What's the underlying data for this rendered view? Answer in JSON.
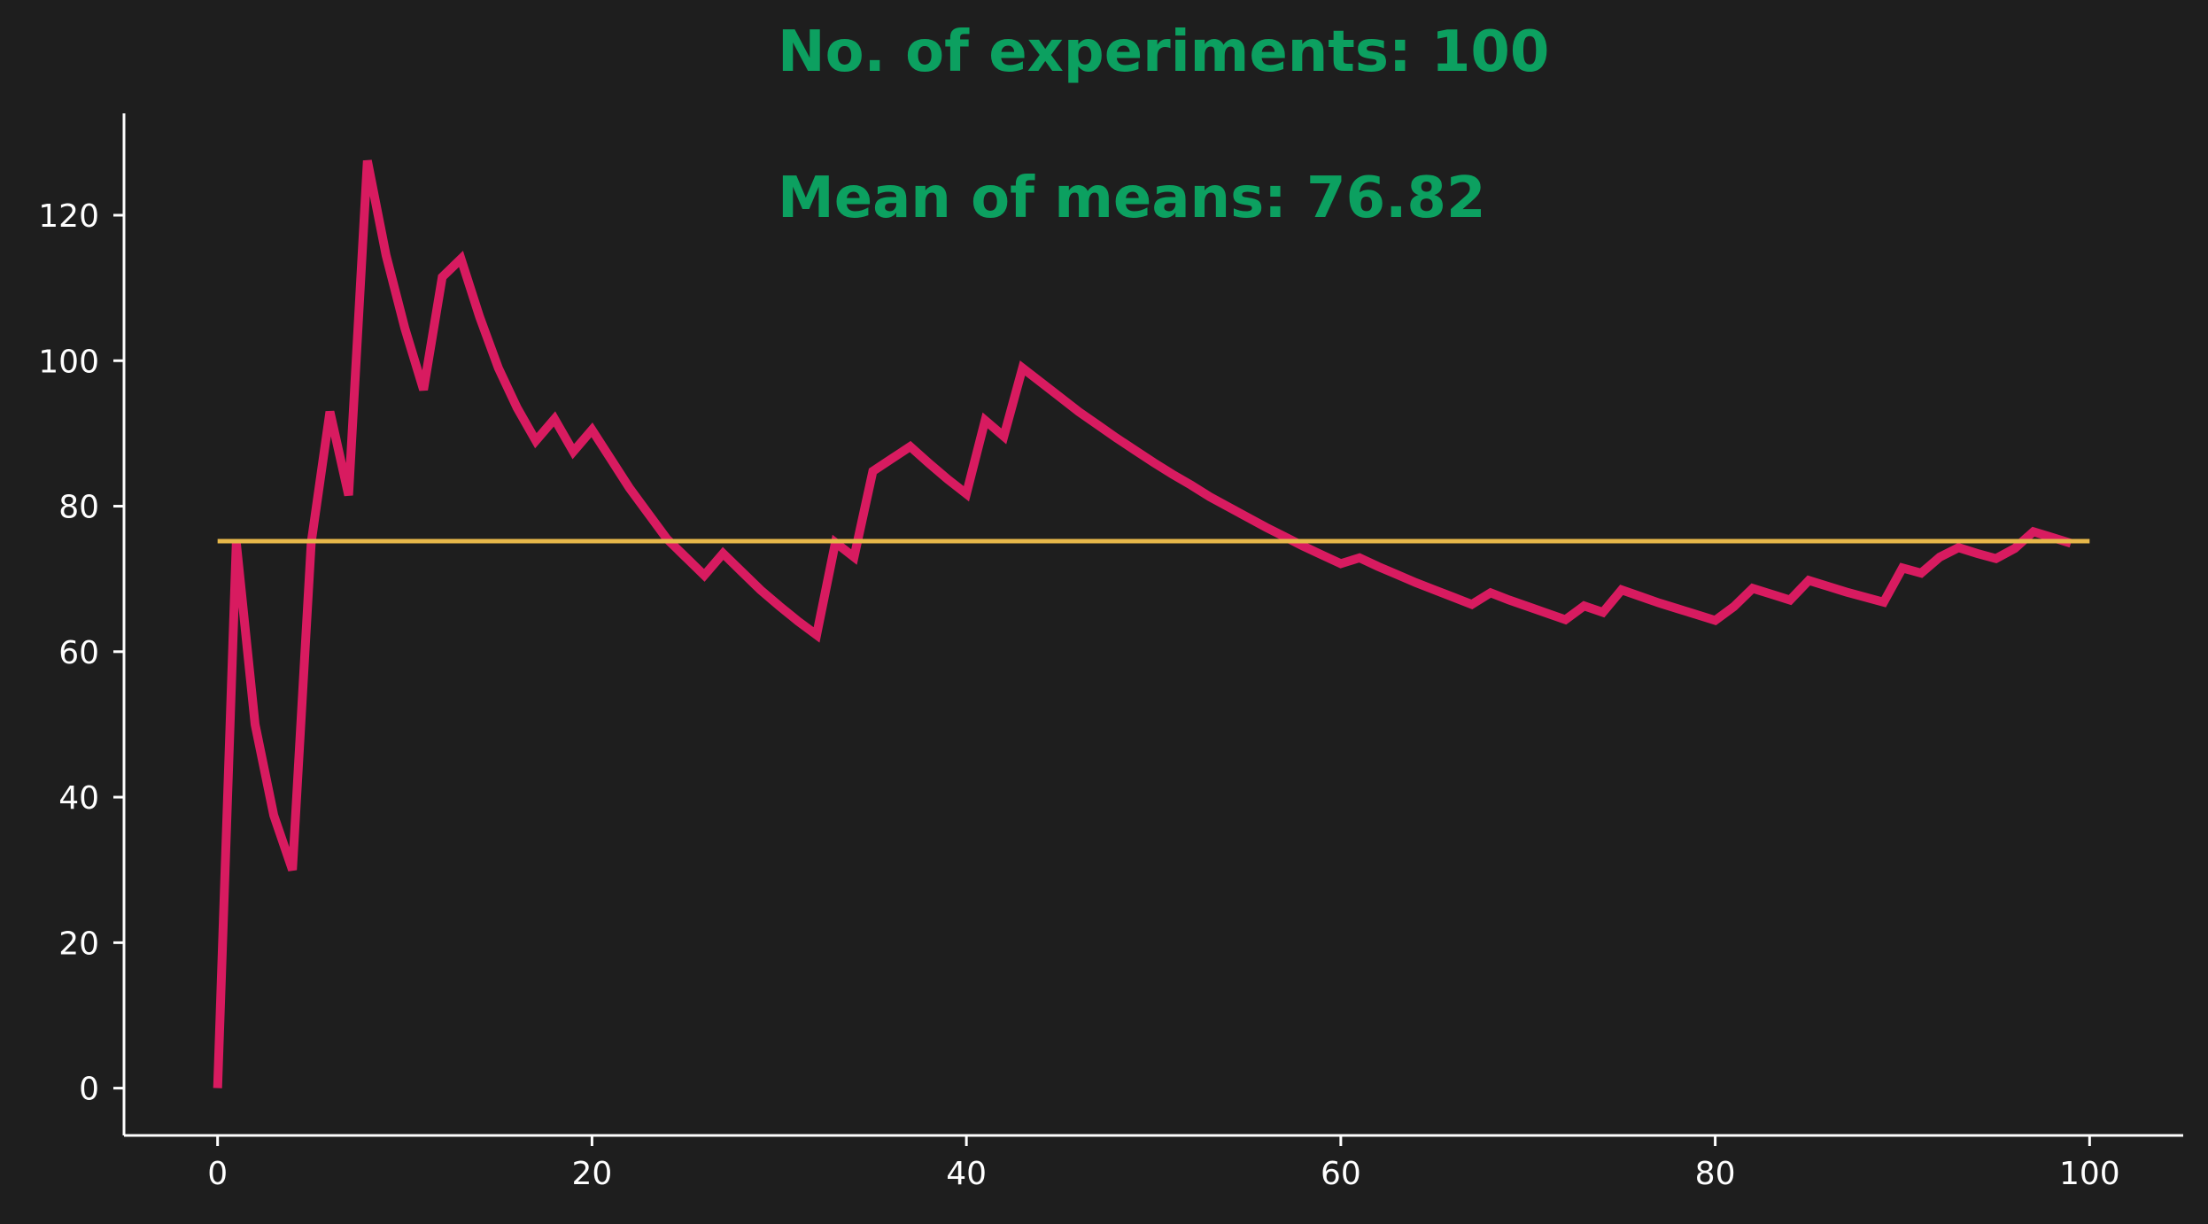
{
  "colors": {
    "background": "#1e1e1e",
    "axis": "#ffffff",
    "series_line": "#d81b60",
    "reference_line": "#e7b84a",
    "annotation": "#0ca060"
  },
  "chart_data": {
    "type": "line",
    "title": "",
    "xlabel": "",
    "ylabel": "",
    "xlim": [
      -5,
      105
    ],
    "ylim": [
      -6.5,
      134
    ],
    "grid": false,
    "x_ticks": [
      0,
      20,
      40,
      60,
      80,
      100
    ],
    "y_ticks": [
      0,
      20,
      40,
      60,
      80,
      100,
      120
    ],
    "x_tick_labels": [
      "0",
      "20",
      "40",
      "60",
      "80",
      "100"
    ],
    "y_tick_labels": [
      "0",
      "20",
      "40",
      "60",
      "80",
      "100",
      "120"
    ],
    "annotations": [
      "No. of experiments: 100",
      "Mean of means: 76.82"
    ],
    "series": [
      {
        "x": [
          0,
          1,
          2,
          3,
          4,
          5,
          6,
          7,
          8,
          9,
          10,
          11,
          12,
          13,
          14,
          15,
          16,
          17,
          18,
          19,
          20,
          21,
          22,
          23,
          24,
          25,
          26,
          27,
          28,
          29,
          30,
          31,
          32,
          33,
          34,
          35,
          36,
          37,
          38,
          39,
          40,
          41,
          42,
          43,
          44,
          45,
          46,
          47,
          48,
          49,
          50,
          51,
          52,
          53,
          54,
          55,
          56,
          57,
          58,
          59,
          60,
          61,
          62,
          63,
          64,
          65,
          66,
          67,
          68,
          69,
          70,
          71,
          72,
          73,
          74,
          75,
          76,
          77,
          78,
          79,
          80,
          81,
          82,
          83,
          84,
          85,
          86,
          87,
          88,
          89,
          90,
          91,
          92,
          93,
          94,
          95,
          96,
          97,
          98,
          99
        ],
        "values": [
          0,
          75,
          50,
          37.5,
          30,
          75,
          93,
          81.5,
          127.5,
          114.5,
          104.5,
          96,
          111.5,
          114,
          106,
          99,
          93.5,
          89,
          92,
          87.5,
          90.5,
          86.5,
          82.5,
          79,
          75.5,
          73,
          70.5,
          73.5,
          71,
          68.5,
          66.3,
          64.2,
          62.3,
          75,
          73,
          84.8,
          86.5,
          88.2,
          85.9,
          83.7,
          81.7,
          91.8,
          89.6,
          99,
          97,
          95,
          93,
          91.2,
          89.4,
          87.7,
          86,
          84.4,
          82.9,
          81.3,
          79.9,
          78.5,
          77.1,
          75.8,
          74.5,
          73.3,
          72.1,
          72.9,
          71.7,
          70.6,
          69.5,
          68.5,
          67.5,
          66.5,
          68.1,
          67.1,
          66.2,
          65.3,
          64.4,
          66.3,
          65.4,
          68.5,
          67.6,
          66.7,
          65.9,
          65.1,
          64.3,
          66.2,
          68.7,
          67.9,
          67.1,
          69.8,
          69,
          68.2,
          67.5,
          66.8,
          71.5,
          70.8,
          73,
          74.3,
          73.5,
          72.8,
          74.2,
          76.5,
          75.7,
          74.9
        ]
      },
      {
        "x": [
          0,
          100
        ],
        "values": [
          75.2,
          75.2
        ]
      }
    ]
  }
}
